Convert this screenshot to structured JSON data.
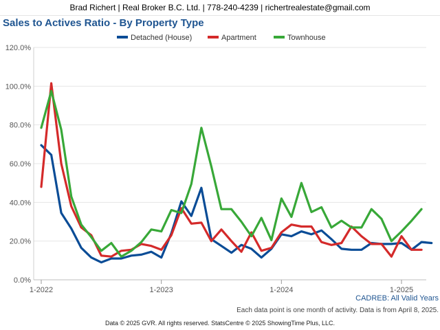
{
  "header": {
    "text": "Brad Richert | Real Broker B.C. Ltd. | 778-240-4239 | richertrealestate@gmail.com"
  },
  "chart_data": {
    "type": "line",
    "title": "Sales to Actives Ratio - By Property Type",
    "xlabel": "",
    "ylabel": "",
    "ylim": [
      0,
      120
    ],
    "yticks": [
      "0.0%",
      "20.0%",
      "40.0%",
      "60.0%",
      "80.0%",
      "100.0%",
      "120.0%"
    ],
    "xticks": [
      {
        "label": "1-2022",
        "index": 0
      },
      {
        "label": "1-2023",
        "index": 12
      },
      {
        "label": "1-2024",
        "index": 24
      },
      {
        "label": "1-2025",
        "index": 36
      }
    ],
    "x_start": "2022-01",
    "grid": true,
    "legend_position": "top-center",
    "series": [
      {
        "name": "Detached (House)",
        "color": "#0a4c96",
        "values": [
          69.5,
          64.5,
          34.5,
          26.5,
          16.5,
          11.5,
          9,
          11,
          11,
          12.5,
          13,
          14.5,
          11.5,
          24,
          40.5,
          33,
          47.5,
          21,
          17.5,
          14,
          18,
          16,
          11.5,
          16,
          23.5,
          22.5,
          25,
          23.5,
          25.5,
          21,
          16,
          15.5,
          15.5,
          19,
          18.5,
          18.5,
          19,
          15.5,
          19.5,
          19
        ]
      },
      {
        "name": "Apartment",
        "color": "#d42a2a",
        "values": [
          48,
          101.5,
          60,
          38,
          27,
          23,
          12.5,
          12,
          15,
          15.5,
          18.5,
          17.5,
          15.5,
          23,
          37,
          29,
          29.5,
          20,
          26,
          20,
          14.5,
          24.5,
          15,
          16.5,
          24.5,
          28.5,
          27.5,
          27.5,
          19.5,
          18,
          19,
          27.5,
          22.5,
          18.5,
          18.5,
          12,
          22.5,
          15.5,
          15.5
        ]
      },
      {
        "name": "Townhouse",
        "color": "#38a838",
        "values": [
          78.5,
          97.5,
          77.5,
          43,
          28.5,
          22,
          15,
          19,
          12,
          15,
          19.5,
          26,
          25,
          36,
          34.5,
          49.5,
          78.5,
          58.5,
          36.5,
          36.5,
          30,
          22.5,
          32,
          20.5,
          42,
          32.5,
          50,
          35,
          37.5,
          27,
          30.5,
          27,
          27,
          36.5,
          31.5,
          20,
          25,
          30.5,
          36.5
        ]
      }
    ]
  },
  "footer": {
    "source": "CADREB: All Valid Years",
    "note": "Each data point is one month of activity. Data is from April 8, 2025.",
    "copyright": "Data © 2025 GVR. All rights reserved. StatsCentre © 2025 ShowingTime Plus, LLC."
  }
}
